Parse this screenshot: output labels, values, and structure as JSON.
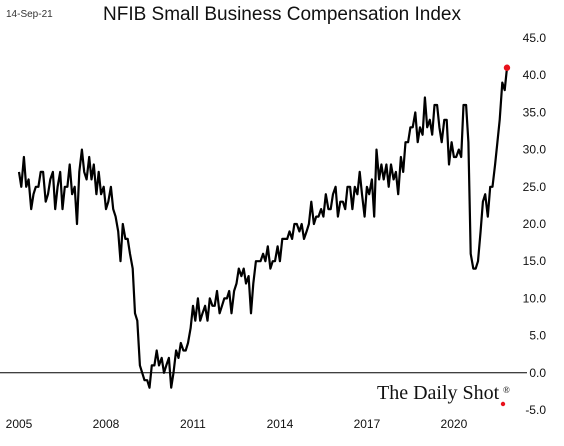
{
  "header": {
    "date": "14-Sep-21",
    "title": "NFIB Small Business Compensation Index"
  },
  "brand": {
    "text": "The Daily Shot",
    "mark": "®"
  },
  "colors": {
    "line": "#000000",
    "highlight": "#e8111b",
    "zero_line": "#000000",
    "background": "#ffffff"
  },
  "chart_data": {
    "type": "line",
    "title": "NFIB Small Business Compensation Index",
    "xlabel": "",
    "ylabel": "",
    "x_range": [
      2005.0,
      2021.9
    ],
    "ylim": [
      -5,
      45
    ],
    "y_axis_side": "right",
    "y_ticks": [
      "45.0",
      "40.0",
      "35.0",
      "30.0",
      "25.0",
      "20.0",
      "15.0",
      "10.0",
      "5.0",
      "0.0",
      "-5.0"
    ],
    "x_ticks": [
      "2005",
      "2008",
      "2011",
      "2014",
      "2017",
      "2020"
    ],
    "grid": false,
    "legend": "none",
    "highlight_last_point": true,
    "series": [
      {
        "values": [
          [
            2005.0,
            27
          ],
          [
            2005.08,
            25
          ],
          [
            2005.17,
            29
          ],
          [
            2005.25,
            25
          ],
          [
            2005.33,
            26
          ],
          [
            2005.42,
            22
          ],
          [
            2005.5,
            24
          ],
          [
            2005.58,
            25
          ],
          [
            2005.67,
            25
          ],
          [
            2005.75,
            27
          ],
          [
            2005.83,
            27
          ],
          [
            2005.92,
            23
          ],
          [
            2006.0,
            24
          ],
          [
            2006.08,
            26
          ],
          [
            2006.17,
            27
          ],
          [
            2006.25,
            22
          ],
          [
            2006.33,
            25
          ],
          [
            2006.42,
            27
          ],
          [
            2006.5,
            22
          ],
          [
            2006.58,
            25
          ],
          [
            2006.67,
            25
          ],
          [
            2006.75,
            28
          ],
          [
            2006.83,
            24
          ],
          [
            2006.92,
            25
          ],
          [
            2007.0,
            20
          ],
          [
            2007.08,
            27
          ],
          [
            2007.17,
            30
          ],
          [
            2007.25,
            27
          ],
          [
            2007.33,
            26
          ],
          [
            2007.42,
            29
          ],
          [
            2007.5,
            26
          ],
          [
            2007.58,
            28
          ],
          [
            2007.67,
            24
          ],
          [
            2007.75,
            27
          ],
          [
            2007.83,
            24
          ],
          [
            2007.92,
            25
          ],
          [
            2008.0,
            22
          ],
          [
            2008.08,
            23
          ],
          [
            2008.17,
            25
          ],
          [
            2008.25,
            22
          ],
          [
            2008.33,
            21
          ],
          [
            2008.42,
            19
          ],
          [
            2008.5,
            15
          ],
          [
            2008.58,
            20
          ],
          [
            2008.67,
            18
          ],
          [
            2008.75,
            18
          ],
          [
            2008.83,
            16
          ],
          [
            2008.92,
            14
          ],
          [
            2009.0,
            8
          ],
          [
            2009.08,
            7
          ],
          [
            2009.17,
            1
          ],
          [
            2009.25,
            0
          ],
          [
            2009.33,
            -1
          ],
          [
            2009.42,
            -1
          ],
          [
            2009.5,
            -2
          ],
          [
            2009.58,
            1
          ],
          [
            2009.67,
            1
          ],
          [
            2009.75,
            3
          ],
          [
            2009.83,
            1
          ],
          [
            2009.92,
            2
          ],
          [
            2010.0,
            0
          ],
          [
            2010.08,
            1
          ],
          [
            2010.17,
            2
          ],
          [
            2010.25,
            -2
          ],
          [
            2010.33,
            0
          ],
          [
            2010.42,
            3
          ],
          [
            2010.5,
            2
          ],
          [
            2010.58,
            4
          ],
          [
            2010.67,
            3
          ],
          [
            2010.75,
            3
          ],
          [
            2010.83,
            4
          ],
          [
            2010.92,
            6
          ],
          [
            2011.0,
            9
          ],
          [
            2011.08,
            7
          ],
          [
            2011.17,
            10
          ],
          [
            2011.25,
            7
          ],
          [
            2011.33,
            8
          ],
          [
            2011.42,
            9
          ],
          [
            2011.5,
            7
          ],
          [
            2011.58,
            10
          ],
          [
            2011.67,
            9
          ],
          [
            2011.75,
            9
          ],
          [
            2011.83,
            11
          ],
          [
            2011.92,
            8
          ],
          [
            2012.0,
            9
          ],
          [
            2012.08,
            10
          ],
          [
            2012.17,
            10
          ],
          [
            2012.25,
            11
          ],
          [
            2012.33,
            8
          ],
          [
            2012.42,
            11
          ],
          [
            2012.5,
            12
          ],
          [
            2012.58,
            14
          ],
          [
            2012.67,
            13
          ],
          [
            2012.75,
            14
          ],
          [
            2012.83,
            12
          ],
          [
            2012.92,
            13
          ],
          [
            2013.0,
            8
          ],
          [
            2013.08,
            12
          ],
          [
            2013.17,
            15
          ],
          [
            2013.25,
            15
          ],
          [
            2013.33,
            15
          ],
          [
            2013.42,
            16
          ],
          [
            2013.5,
            15
          ],
          [
            2013.58,
            17
          ],
          [
            2013.67,
            14
          ],
          [
            2013.75,
            15
          ],
          [
            2013.83,
            15
          ],
          [
            2013.92,
            17
          ],
          [
            2014.0,
            15
          ],
          [
            2014.08,
            18
          ],
          [
            2014.17,
            18
          ],
          [
            2014.25,
            18
          ],
          [
            2014.33,
            19
          ],
          [
            2014.42,
            18
          ],
          [
            2014.5,
            20
          ],
          [
            2014.58,
            20
          ],
          [
            2014.67,
            19
          ],
          [
            2014.75,
            20
          ],
          [
            2014.83,
            18
          ],
          [
            2014.92,
            19
          ],
          [
            2015.0,
            20
          ],
          [
            2015.08,
            23
          ],
          [
            2015.17,
            20
          ],
          [
            2015.25,
            21
          ],
          [
            2015.33,
            21
          ],
          [
            2015.42,
            22
          ],
          [
            2015.5,
            21
          ],
          [
            2015.58,
            24
          ],
          [
            2015.67,
            22
          ],
          [
            2015.75,
            22
          ],
          [
            2015.83,
            24
          ],
          [
            2015.92,
            25
          ],
          [
            2016.0,
            21
          ],
          [
            2016.08,
            23
          ],
          [
            2016.17,
            23
          ],
          [
            2016.25,
            22
          ],
          [
            2016.33,
            25
          ],
          [
            2016.42,
            25
          ],
          [
            2016.5,
            22
          ],
          [
            2016.58,
            25
          ],
          [
            2016.67,
            24
          ],
          [
            2016.75,
            27
          ],
          [
            2016.83,
            24
          ],
          [
            2016.92,
            21
          ],
          [
            2017.0,
            25
          ],
          [
            2017.08,
            24
          ],
          [
            2017.17,
            26
          ],
          [
            2017.25,
            21
          ],
          [
            2017.33,
            30
          ],
          [
            2017.42,
            26
          ],
          [
            2017.5,
            28
          ],
          [
            2017.58,
            26
          ],
          [
            2017.67,
            28
          ],
          [
            2017.75,
            25
          ],
          [
            2017.83,
            28
          ],
          [
            2017.92,
            26
          ],
          [
            2018.0,
            27
          ],
          [
            2018.08,
            24
          ],
          [
            2018.17,
            29
          ],
          [
            2018.25,
            27
          ],
          [
            2018.33,
            31
          ],
          [
            2018.42,
            31
          ],
          [
            2018.5,
            33
          ],
          [
            2018.58,
            33
          ],
          [
            2018.67,
            35
          ],
          [
            2018.75,
            31
          ],
          [
            2018.83,
            33
          ],
          [
            2018.92,
            32
          ],
          [
            2019.0,
            37
          ],
          [
            2019.08,
            33
          ],
          [
            2019.17,
            34
          ],
          [
            2019.25,
            32
          ],
          [
            2019.33,
            36
          ],
          [
            2019.42,
            36
          ],
          [
            2019.5,
            33
          ],
          [
            2019.58,
            31
          ],
          [
            2019.67,
            34
          ],
          [
            2019.75,
            34
          ],
          [
            2019.83,
            28
          ],
          [
            2019.92,
            31
          ],
          [
            2020.0,
            29
          ],
          [
            2020.08,
            29
          ],
          [
            2020.17,
            30
          ],
          [
            2020.25,
            29
          ],
          [
            2020.33,
            36
          ],
          [
            2020.42,
            36
          ],
          [
            2020.5,
            31
          ],
          [
            2020.58,
            16
          ],
          [
            2020.67,
            14
          ],
          [
            2020.75,
            14
          ],
          [
            2020.83,
            15
          ],
          [
            2020.92,
            19
          ],
          [
            2021.0,
            23
          ],
          [
            2021.08,
            24
          ],
          [
            2021.17,
            21
          ],
          [
            2021.25,
            25
          ],
          [
            2021.33,
            25
          ],
          [
            2021.42,
            28
          ],
          [
            2021.5,
            31
          ],
          [
            2021.58,
            34
          ],
          [
            2021.67,
            39
          ],
          [
            2021.75,
            38
          ],
          [
            2021.83,
            41
          ]
        ]
      }
    ]
  }
}
